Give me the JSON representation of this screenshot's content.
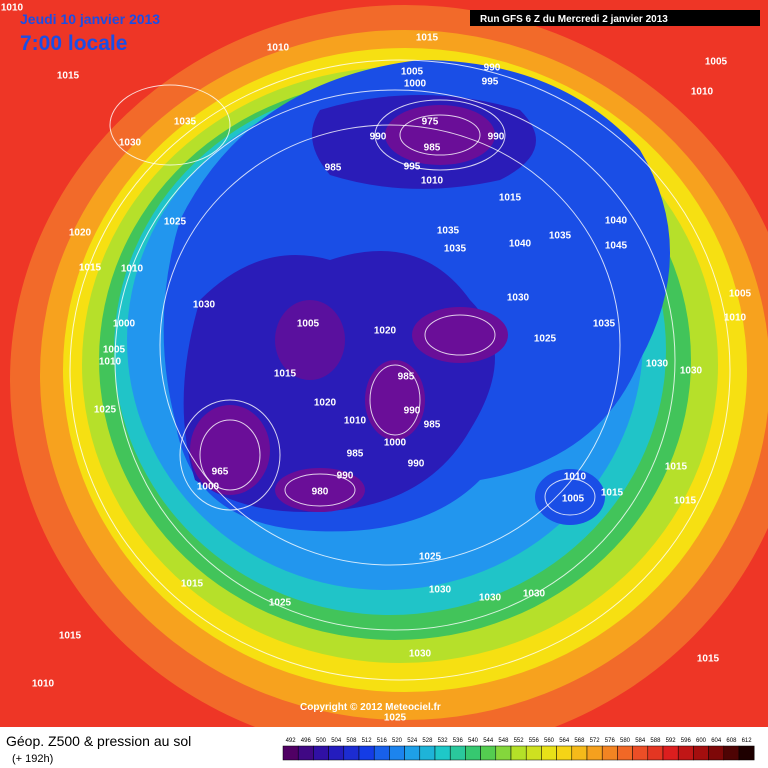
{
  "header": {
    "date": "Jeudi 10 janvier 2013",
    "time": "7:00 locale",
    "run": "Run GFS 6 Z du Mercredi 2 janvier 2013"
  },
  "copyright": "Copyright © 2012 Meteociel.fr",
  "footer": {
    "title": "Géop. Z500 & pression au sol",
    "lead": "(+ 192h)"
  },
  "legend": {
    "values": [
      492,
      496,
      500,
      504,
      508,
      512,
      516,
      520,
      524,
      528,
      532,
      536,
      540,
      544,
      548,
      552,
      556,
      560,
      564,
      568,
      572,
      576,
      580,
      584,
      588,
      592,
      596,
      600,
      604,
      608,
      612
    ]
  },
  "isobars": [
    1010,
    1010,
    1015,
    990,
    1005,
    995,
    1000,
    1005,
    1010,
    1015,
    1035,
    1030,
    975,
    990,
    985,
    990,
    985,
    995,
    1010,
    1015,
    1025,
    1040,
    1020,
    1035,
    1035,
    1045,
    1040,
    1035,
    1015,
    1010,
    1030,
    1030,
    1005,
    1010,
    1000,
    1005,
    1035,
    1020,
    1025,
    1005,
    1010,
    1030,
    1030,
    1015,
    985,
    1020,
    990,
    985,
    1010,
    1025,
    1000,
    990,
    985,
    990,
    980,
    1000,
    965,
    1010,
    1005,
    1015,
    1015,
    1015,
    1025,
    1030,
    1030,
    1030,
    1015,
    1025,
    1015,
    1030,
    1015,
    1010,
    1025
  ]
}
